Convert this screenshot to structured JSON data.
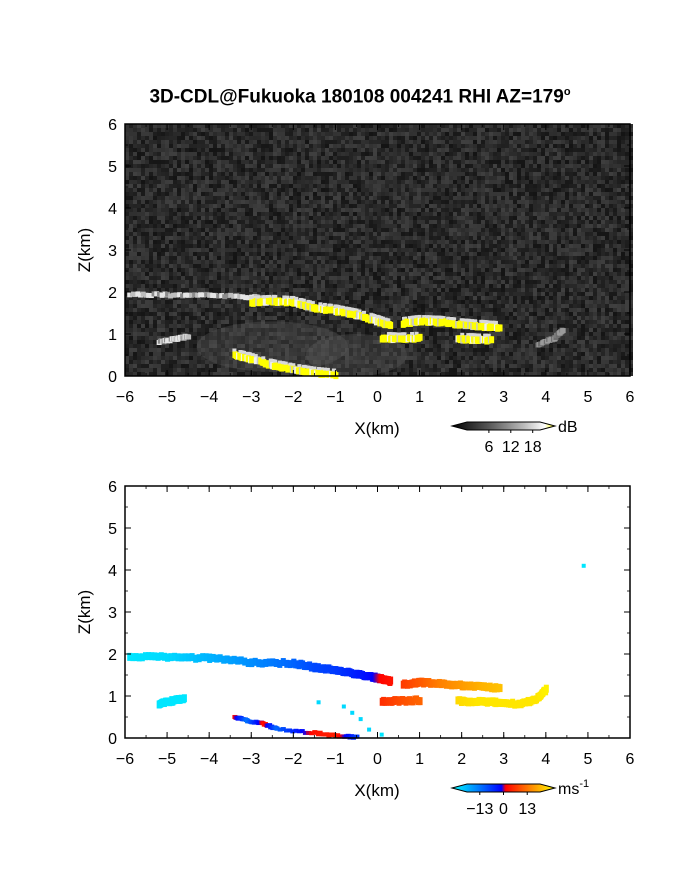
{
  "title": {
    "text": "3D-CDL@Fukuoka 180108 004241 RHI AZ=179",
    "degree_mark": "o"
  },
  "chart_data": [
    {
      "type": "heatmap",
      "panel": "top",
      "description_field": "Reflectivity",
      "xlabel": "X(km)",
      "ylabel": "Z(km)",
      "xlim": [
        -6,
        6
      ],
      "ylim": [
        0,
        6
      ],
      "xticks": [
        -6,
        -5,
        -4,
        -3,
        -2,
        -1,
        0,
        1,
        2,
        3,
        4,
        5,
        6
      ],
      "yticks": [
        0,
        1,
        2,
        3,
        4,
        5,
        6
      ],
      "background_color": "#2a2a2a",
      "colorbar": {
        "unit": "dB",
        "tick_labels": [
          "6",
          "12",
          "18"
        ],
        "tick_values": [
          6,
          12,
          18
        ],
        "range": [
          0,
          20
        ],
        "colors": [
          "#000000",
          "#555555",
          "#aaaaaa",
          "#ffffff",
          "#ffff00"
        ]
      },
      "features": [
        {
          "name": "upper layer left",
          "points": [
            [
              -5.9,
              1.95
            ],
            [
              -5.0,
              1.93
            ],
            [
              -4.0,
              1.92
            ],
            [
              -3.0,
              1.88
            ],
            [
              -2.5,
              1.82
            ]
          ],
          "intensity": "high-gray"
        },
        {
          "name": "upper layer yellow",
          "points": [
            [
              -3.0,
              1.75
            ],
            [
              -2.5,
              1.78
            ],
            [
              -2.0,
              1.75
            ],
            [
              -1.5,
              1.62
            ],
            [
              -1.0,
              1.55
            ],
            [
              -0.5,
              1.45
            ],
            [
              0.0,
              1.3
            ],
            [
              0.3,
              1.2
            ]
          ],
          "intensity": "yellow"
        },
        {
          "name": "right layer yellow",
          "points": [
            [
              0.6,
              1.25
            ],
            [
              1.0,
              1.3
            ],
            [
              1.5,
              1.28
            ],
            [
              2.0,
              1.22
            ],
            [
              2.5,
              1.18
            ],
            [
              2.9,
              1.15
            ]
          ],
          "intensity": "yellow"
        },
        {
          "name": "lower cell yellow",
          "points": [
            [
              0.1,
              0.9
            ],
            [
              0.5,
              0.88
            ],
            [
              1.0,
              0.9
            ]
          ],
          "intensity": "yellow"
        },
        {
          "name": "lower right yellow",
          "points": [
            [
              1.9,
              0.88
            ],
            [
              2.3,
              0.86
            ],
            [
              2.7,
              0.85
            ]
          ],
          "intensity": "yellow"
        },
        {
          "name": "left lower gray",
          "points": [
            [
              -5.2,
              0.82
            ],
            [
              -4.8,
              0.88
            ],
            [
              -4.5,
              0.95
            ]
          ],
          "intensity": "high-gray"
        },
        {
          "name": "surface yellow",
          "points": [
            [
              -3.4,
              0.5
            ],
            [
              -3.0,
              0.4
            ],
            [
              -2.5,
              0.25
            ],
            [
              -2.0,
              0.15
            ],
            [
              -1.5,
              0.07
            ],
            [
              -1.0,
              0.02
            ]
          ],
          "intensity": "yellow"
        },
        {
          "name": "right sparse gray",
          "points": [
            [
              3.8,
              0.75
            ],
            [
              4.2,
              0.9
            ],
            [
              4.4,
              1.1
            ]
          ],
          "intensity": "mid-gray"
        }
      ]
    },
    {
      "type": "heatmap",
      "panel": "bottom",
      "description_field": "Doppler velocity",
      "xlabel": "X(km)",
      "ylabel": "Z(km)",
      "xlim": [
        -6,
        6
      ],
      "ylim": [
        0,
        6
      ],
      "xticks": [
        -6,
        -5,
        -4,
        -3,
        -2,
        -1,
        0,
        1,
        2,
        3,
        4,
        5,
        6
      ],
      "yticks": [
        0,
        1,
        2,
        3,
        4,
        5,
        6
      ],
      "colorbar": {
        "unit": "ms",
        "unit_exponent": "-1",
        "tick_labels": [
          "-13",
          "0",
          "13"
        ],
        "tick_values": [
          -13,
          0,
          13
        ],
        "range": [
          -20,
          20
        ],
        "colors": [
          "#00ffff",
          "#0080ff",
          "#0000ff",
          "#ff0000",
          "#ff8000",
          "#ffff00"
        ]
      },
      "features": [
        {
          "name": "upper layer",
          "points": [
            [
              -5.9,
              1.93,
              -18
            ],
            [
              -5.0,
              1.93,
              -17
            ],
            [
              -4.0,
              1.9,
              -14
            ],
            [
              -3.0,
              1.8,
              -11
            ],
            [
              -2.0,
              1.78,
              -8
            ],
            [
              -1.5,
              1.68,
              -6
            ],
            [
              -1.0,
              1.62,
              -5
            ],
            [
              -0.5,
              1.52,
              -3
            ],
            [
              -0.1,
              1.45,
              -1
            ],
            [
              0.1,
              1.4,
              1
            ],
            [
              0.3,
              1.35,
              2
            ]
          ]
        },
        {
          "name": "right layer",
          "points": [
            [
              0.6,
              1.28,
              5
            ],
            [
              1.0,
              1.32,
              7
            ],
            [
              1.5,
              1.3,
              10
            ],
            [
              2.0,
              1.25,
              12
            ],
            [
              2.5,
              1.22,
              14
            ],
            [
              2.9,
              1.18,
              15
            ]
          ]
        },
        {
          "name": "lower cell",
          "points": [
            [
              0.1,
              0.88,
              4
            ],
            [
              0.5,
              0.88,
              6
            ],
            [
              1.0,
              0.9,
              8
            ]
          ]
        },
        {
          "name": "lower right",
          "points": [
            [
              1.9,
              0.88,
              17
            ],
            [
              2.4,
              0.86,
              18
            ],
            [
              2.8,
              0.85,
              18
            ],
            [
              3.4,
              0.8,
              18
            ],
            [
              3.8,
              0.95,
              18
            ],
            [
              4.0,
              1.15,
              19
            ]
          ]
        },
        {
          "name": "left lower",
          "points": [
            [
              -5.2,
              0.82,
              -18
            ],
            [
              -4.9,
              0.88,
              -18
            ],
            [
              -4.6,
              0.95,
              -18
            ]
          ]
        },
        {
          "name": "surface streak",
          "points": [
            [
              -3.4,
              0.5,
              1
            ],
            [
              -3.1,
              0.42,
              -9
            ],
            [
              -2.7,
              0.33,
              2
            ],
            [
              -2.4,
              0.22,
              -8
            ],
            [
              -1.5,
              0.12,
              2
            ],
            [
              -1.0,
              0.05,
              3
            ],
            [
              -0.5,
              0.02,
              -5
            ]
          ]
        },
        {
          "name": "scattered",
          "points": [
            [
              -0.8,
              0.75,
              -17
            ],
            [
              -0.6,
              0.6,
              -17
            ],
            [
              -0.4,
              0.45,
              -17
            ],
            [
              -1.4,
              0.85,
              -17
            ],
            [
              -0.2,
              0.2,
              -17
            ],
            [
              0.1,
              0.08,
              -18
            ]
          ]
        },
        {
          "name": "isolated",
          "points": [
            [
              4.9,
              4.1,
              -18
            ]
          ]
        }
      ]
    }
  ]
}
